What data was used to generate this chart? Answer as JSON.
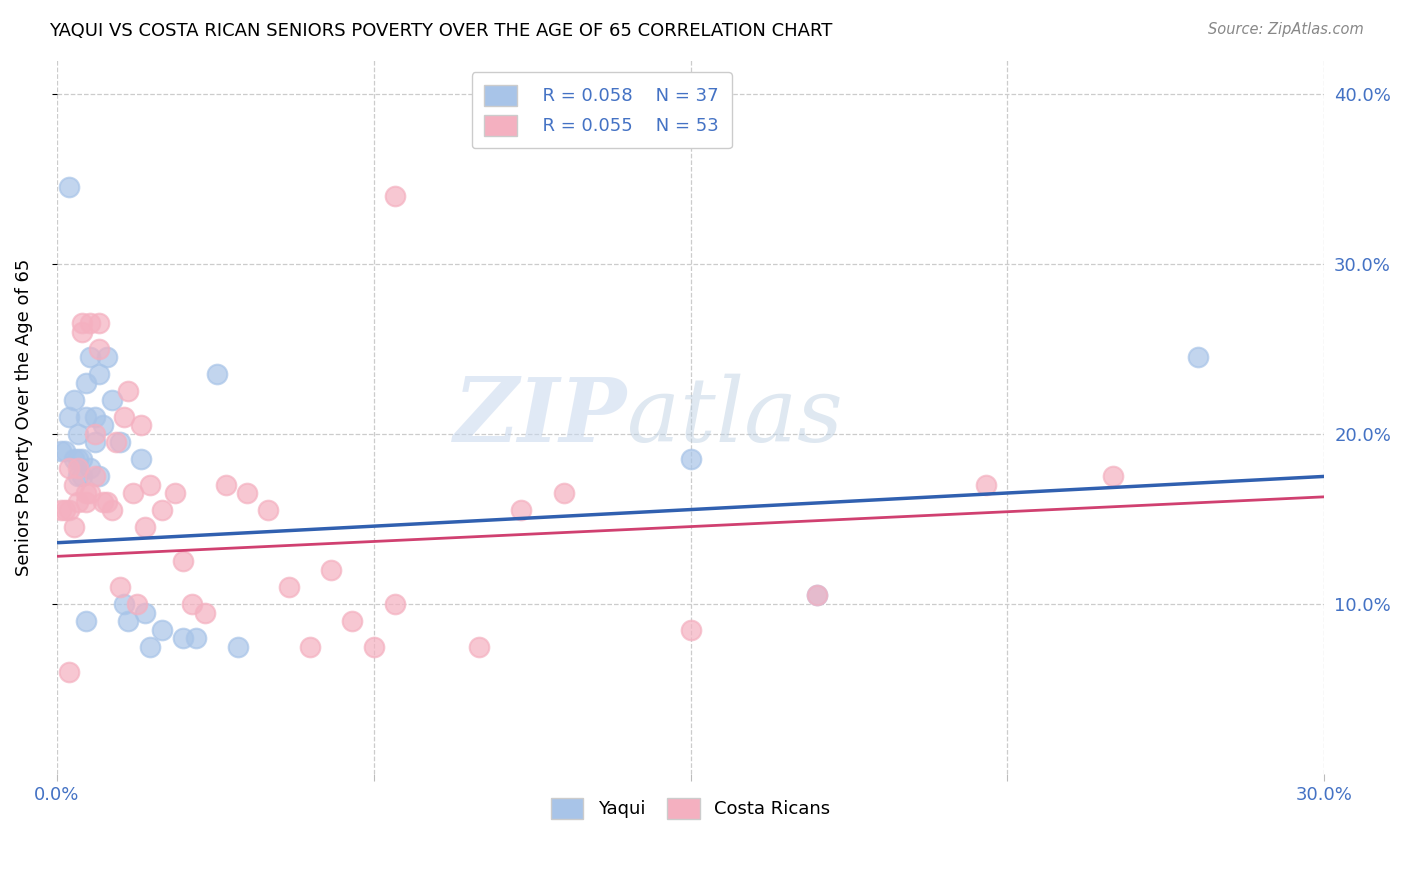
{
  "title": "YAQUI VS COSTA RICAN SENIORS POVERTY OVER THE AGE OF 65 CORRELATION CHART",
  "source": "Source: ZipAtlas.com",
  "ylabel_left": "Seniors Poverty Over the Age of 65",
  "xlim": [
    0.0,
    0.3
  ],
  "ylim": [
    0.0,
    0.42
  ],
  "yaqui_color": "#a8c4e8",
  "costa_color": "#f4b0c0",
  "yaqui_line_color": "#3060b0",
  "costa_line_color": "#d04070",
  "watermark_zip": "ZIP",
  "watermark_atlas": "atlas",
  "yaqui_x": [
    0.001,
    0.002,
    0.003,
    0.004,
    0.004,
    0.005,
    0.005,
    0.006,
    0.006,
    0.007,
    0.007,
    0.008,
    0.008,
    0.009,
    0.009,
    0.01,
    0.01,
    0.011,
    0.012,
    0.013,
    0.015,
    0.016,
    0.017,
    0.02,
    0.021,
    0.022,
    0.025,
    0.03,
    0.033,
    0.038,
    0.043,
    0.15,
    0.18,
    0.27,
    0.003,
    0.005,
    0.007
  ],
  "yaqui_y": [
    0.19,
    0.19,
    0.21,
    0.185,
    0.22,
    0.185,
    0.2,
    0.175,
    0.185,
    0.21,
    0.23,
    0.18,
    0.245,
    0.21,
    0.195,
    0.175,
    0.235,
    0.205,
    0.245,
    0.22,
    0.195,
    0.1,
    0.09,
    0.185,
    0.095,
    0.075,
    0.085,
    0.08,
    0.08,
    0.235,
    0.075,
    0.185,
    0.105,
    0.245,
    0.345,
    0.175,
    0.09
  ],
  "costa_x": [
    0.001,
    0.002,
    0.003,
    0.003,
    0.004,
    0.004,
    0.005,
    0.005,
    0.006,
    0.006,
    0.007,
    0.007,
    0.008,
    0.008,
    0.009,
    0.009,
    0.01,
    0.01,
    0.011,
    0.012,
    0.013,
    0.014,
    0.015,
    0.016,
    0.017,
    0.018,
    0.019,
    0.02,
    0.021,
    0.022,
    0.025,
    0.028,
    0.03,
    0.032,
    0.035,
    0.04,
    0.045,
    0.05,
    0.055,
    0.06,
    0.065,
    0.07,
    0.075,
    0.08,
    0.1,
    0.11,
    0.12,
    0.15,
    0.18,
    0.22,
    0.25,
    0.08,
    0.003
  ],
  "costa_y": [
    0.155,
    0.155,
    0.155,
    0.18,
    0.17,
    0.145,
    0.16,
    0.18,
    0.26,
    0.265,
    0.165,
    0.16,
    0.165,
    0.265,
    0.2,
    0.175,
    0.25,
    0.265,
    0.16,
    0.16,
    0.155,
    0.195,
    0.11,
    0.21,
    0.225,
    0.165,
    0.1,
    0.205,
    0.145,
    0.17,
    0.155,
    0.165,
    0.125,
    0.1,
    0.095,
    0.17,
    0.165,
    0.155,
    0.11,
    0.075,
    0.12,
    0.09,
    0.075,
    0.1,
    0.075,
    0.155,
    0.165,
    0.085,
    0.105,
    0.17,
    0.175,
    0.34,
    0.06
  ]
}
